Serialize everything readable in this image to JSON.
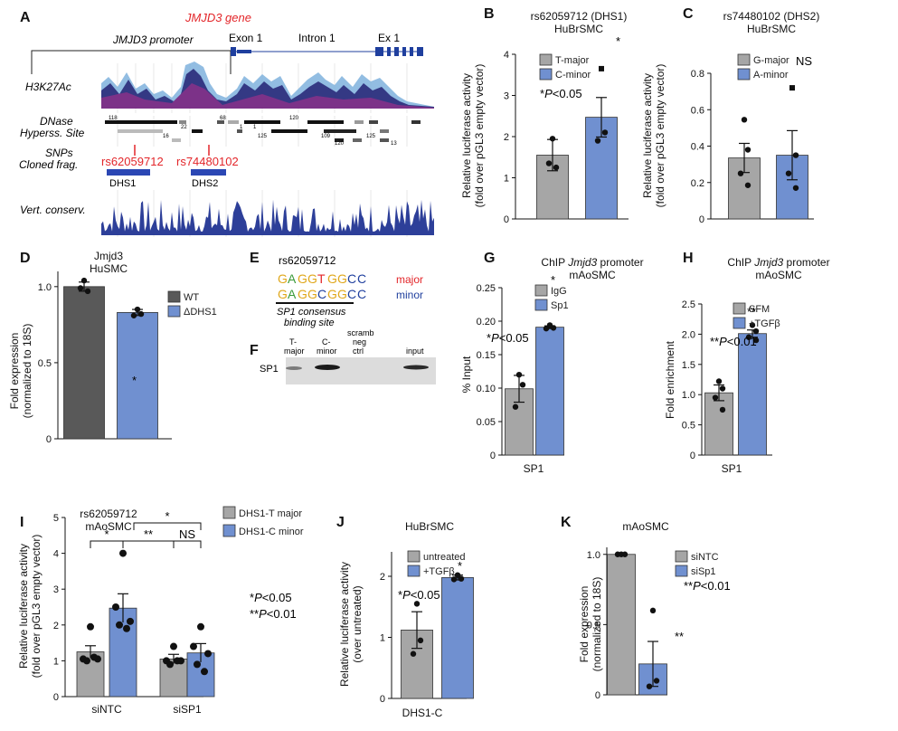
{
  "colors": {
    "grey": "#a6a6a6",
    "dark": "#595959",
    "blue": "#7090d0",
    "red": "#e3262a",
    "navy": "#1f3f9e",
    "edge": "#333333"
  },
  "panel_a": {
    "label": "A",
    "gene_title": "JMJD3 gene",
    "promoter": "JMJD3 promoter",
    "exon1": "Exon 1",
    "intron1": "Intron 1",
    "ex1": "Ex 1",
    "track_h3k27ac": "H3K27Ac",
    "track_dnase_1": "DNase",
    "track_dnase_2": "Hyperss. Site",
    "track_snps": "SNPs",
    "track_cloned": "Cloned frag.",
    "track_cons": "Vert. conserv.",
    "snp1": "rs62059712",
    "snp2": "rs74480102",
    "frag1": "DHS1",
    "frag2": "DHS2",
    "dnase_nums": [
      "118",
      "68",
      "120",
      "1",
      "22",
      "1",
      "125",
      "109",
      "125",
      "16",
      "120",
      "13"
    ]
  },
  "panel_e": {
    "label": "E",
    "title": "rs62059712",
    "major_seq": [
      "G",
      "A",
      "G",
      "G",
      "T",
      "G",
      "G",
      "C",
      "C"
    ],
    "minor_seq": [
      "G",
      "A",
      "G",
      "G",
      "C",
      "G",
      "G",
      "C",
      "C"
    ],
    "seq_colors": [
      "#e0a81c",
      "#3a9a3a",
      "#e0a81c",
      "#e0a81c",
      "#e3262a",
      "#e0a81c",
      "#e0a81c",
      "#1f3f9e",
      "#1f3f9e"
    ],
    "minor_seq_colors": [
      "#e0a81c",
      "#3a9a3a",
      "#e0a81c",
      "#e0a81c",
      "#1f3f9e",
      "#e0a81c",
      "#e0a81c",
      "#1f3f9e",
      "#1f3f9e"
    ],
    "major_label": "major",
    "minor_label": "minor",
    "caption1": "SP1 consensus",
    "caption2": "binding site"
  },
  "panel_f": {
    "label": "F",
    "row_label": "SP1",
    "lanes": [
      [
        "T-",
        "major"
      ],
      [
        "C-",
        "minor"
      ],
      [
        "scramb",
        "neg",
        "ctrl"
      ],
      [
        "input"
      ]
    ]
  },
  "chart_data": [
    {
      "panel": "B",
      "type": "bar",
      "title": [
        "rs62059712 (DHS1)",
        "HuBrSMC"
      ],
      "ylabel": [
        "Relative luciferase activity",
        "(fold over pGL3 empty vector)"
      ],
      "xlabel": "",
      "ylim": [
        0,
        4
      ],
      "yticks": [
        "0",
        "1",
        "2",
        "3",
        "4"
      ],
      "categories": [
        "T-major",
        "C-minor"
      ],
      "values": [
        1.55,
        2.47
      ],
      "errors": [
        0.38,
        0.48
      ],
      "points": [
        [
          1.95,
          1.25,
          1.35
        ],
        [
          3.65,
          2.1,
          1.9
        ]
      ],
      "legend": [
        "T-major",
        "C-minor"
      ],
      "annotations": [
        "*",
        "*P<0.05"
      ],
      "sig": [
        "",
        "*"
      ]
    },
    {
      "panel": "C",
      "type": "bar",
      "title": [
        "rs74480102 (DHS2)",
        "HuBrSMC"
      ],
      "ylabel": [
        "Relative luciferase activity",
        "(fold over pGL3 empty vector)"
      ],
      "xlabel": "",
      "ylim": [
        0,
        0.8
      ],
      "yticks": [
        "0",
        "0.2",
        "0.4",
        "0.6",
        "0.8"
      ],
      "categories": [
        "G-major",
        "A-minor"
      ],
      "values": [
        0.335,
        0.35
      ],
      "errors": [
        0.08,
        0.135
      ],
      "points": [
        [
          0.545,
          0.38,
          0.25,
          0.185
        ],
        [
          0.72,
          0.35,
          0.25,
          0.17
        ]
      ],
      "legend": [
        "G-major",
        "A-minor"
      ],
      "annotations": [
        "NS"
      ],
      "sig": [
        "",
        "NS"
      ]
    },
    {
      "panel": "D",
      "type": "bar",
      "title": [
        "Jmjd3",
        "HuSMC"
      ],
      "ylabel": [
        "Fold expression",
        "(normalized to 18S)"
      ],
      "xlabel": "",
      "ylim": [
        0,
        1.1
      ],
      "yticks": [
        "0",
        "0.5",
        "1.0"
      ],
      "categories": [
        "WT",
        "ΔDHS1"
      ],
      "values": [
        1.0,
        0.83
      ],
      "errors": [
        0.03,
        0.02
      ],
      "points": [
        [
          1.04,
          0.97,
          0.99
        ],
        [
          0.85,
          0.82,
          0.81
        ]
      ],
      "legend": [
        "WT",
        "ΔDHS1"
      ],
      "annotations": [
        "*"
      ],
      "sig": [
        "",
        "*"
      ]
    },
    {
      "panel": "G",
      "type": "bar",
      "title": [
        "ChIP Jmjd3 promoter",
        "mAoSMC"
      ],
      "ylabel": [
        "% Input"
      ],
      "xlabel": "SP1",
      "ylim": [
        0,
        0.25
      ],
      "yticks": [
        "0",
        "0.05",
        "0.10",
        "0.15",
        "0.20",
        "0.25"
      ],
      "categories": [
        "IgG",
        "Sp1"
      ],
      "values": [
        0.099,
        0.191
      ],
      "errors": [
        0.02,
        0.002
      ],
      "points": [
        [
          0.12,
          0.105,
          0.072
        ],
        [
          0.194,
          0.19,
          0.189
        ]
      ],
      "legend": [
        "IgG",
        "Sp1"
      ],
      "annotations": [
        "*",
        "*P<0.05"
      ],
      "sig": [
        "",
        "*"
      ]
    },
    {
      "panel": "H",
      "type": "bar",
      "title": [
        "ChIP Jmjd3 promoter",
        "mAoSMC"
      ],
      "ylabel": [
        "Fold enrichment"
      ],
      "xlabel": "SP1",
      "ylim": [
        0,
        2.5
      ],
      "yticks": [
        "0",
        "0.5",
        "1.0",
        "1.5",
        "2.0",
        "2.5"
      ],
      "categories": [
        "SFM",
        "+TGFβ"
      ],
      "values": [
        1.03,
        2.01
      ],
      "errors": [
        0.13,
        0.06
      ],
      "points": [
        [
          1.22,
          1.1,
          0.95,
          0.75
        ],
        [
          2.15,
          2.05,
          1.95,
          1.9
        ]
      ],
      "legend": [
        "SFM",
        "+TGFβ"
      ],
      "annotations": [
        "**",
        "**P<0.01"
      ],
      "sig": [
        "",
        "**"
      ]
    },
    {
      "panel": "I",
      "type": "bar",
      "title": [
        "rs62059712",
        "mAoSMC"
      ],
      "ylabel": [
        "Relative luciferase activity",
        "(fold over pGL3 empty vector)"
      ],
      "xlabel": "",
      "ylim": [
        0,
        5
      ],
      "yticks": [
        "0",
        "1",
        "2",
        "3",
        "4",
        "5"
      ],
      "groups": [
        "siNTC",
        "siSP1"
      ],
      "series": [
        {
          "name": "DHS1-T major",
          "values": [
            1.25,
            1.05
          ],
          "errors": [
            0.17,
            0.13
          ],
          "points": [
            [
              1.95,
              1.05,
              1.05,
              1.0,
              1.1
            ],
            [
              1.4,
              1.0,
              1.0,
              0.9,
              1.0
            ]
          ]
        },
        {
          "name": "DHS1-C minor",
          "values": [
            2.47,
            1.22
          ],
          "errors": [
            0.4,
            0.26
          ],
          "points": [
            [
              4.0,
              2.5,
              2.1,
              2.0,
              1.9
            ],
            [
              1.95,
              1.4,
              1.2,
              0.9,
              0.7
            ]
          ]
        }
      ],
      "brackets": [
        "*",
        "**",
        "*",
        "NS"
      ],
      "legend": [
        "DHS1-T major",
        "DHS1-C minor"
      ],
      "annotations": [
        "*P<0.05",
        "**P<0.01"
      ]
    },
    {
      "panel": "J",
      "type": "bar",
      "title": [
        "HuBrSMC"
      ],
      "ylabel": [
        "Relative luciferase activity",
        "(over untreated)"
      ],
      "xlabel": "DHS1-C",
      "ylim": [
        0,
        2.4
      ],
      "yticks": [
        "0",
        "1",
        "2"
      ],
      "categories": [
        "untreated",
        "+TGFβ"
      ],
      "values": [
        1.12,
        1.98
      ],
      "errors": [
        0.3,
        0.04
      ],
      "points": [
        [
          1.55,
          0.95,
          0.73
        ],
        [
          2.02,
          1.96,
          1.95
        ]
      ],
      "legend": [
        "untreated",
        "+TGFβ"
      ],
      "annotations": [
        "*",
        "*P<0.05"
      ],
      "sig": [
        "",
        "*"
      ]
    },
    {
      "panel": "K",
      "type": "bar",
      "title": [
        "mAoSMC"
      ],
      "ylabel": [
        "Fold expression",
        "(normalized to 18S)"
      ],
      "xlabel": "",
      "ylim": [
        0,
        1.05
      ],
      "yticks": [
        "0",
        "0.5",
        "1.0"
      ],
      "categories": [
        "siNTC",
        "siSp1"
      ],
      "values": [
        1.0,
        0.22
      ],
      "errors": [
        0.002,
        0.16
      ],
      "points": [
        [
          1.0,
          1.0,
          1.0
        ],
        [
          0.6,
          0.1,
          0.06
        ]
      ],
      "legend": [
        "siNTC",
        "siSp1"
      ],
      "annotations": [
        "**",
        "**P<0.01"
      ],
      "sig": [
        "",
        "**"
      ]
    }
  ]
}
